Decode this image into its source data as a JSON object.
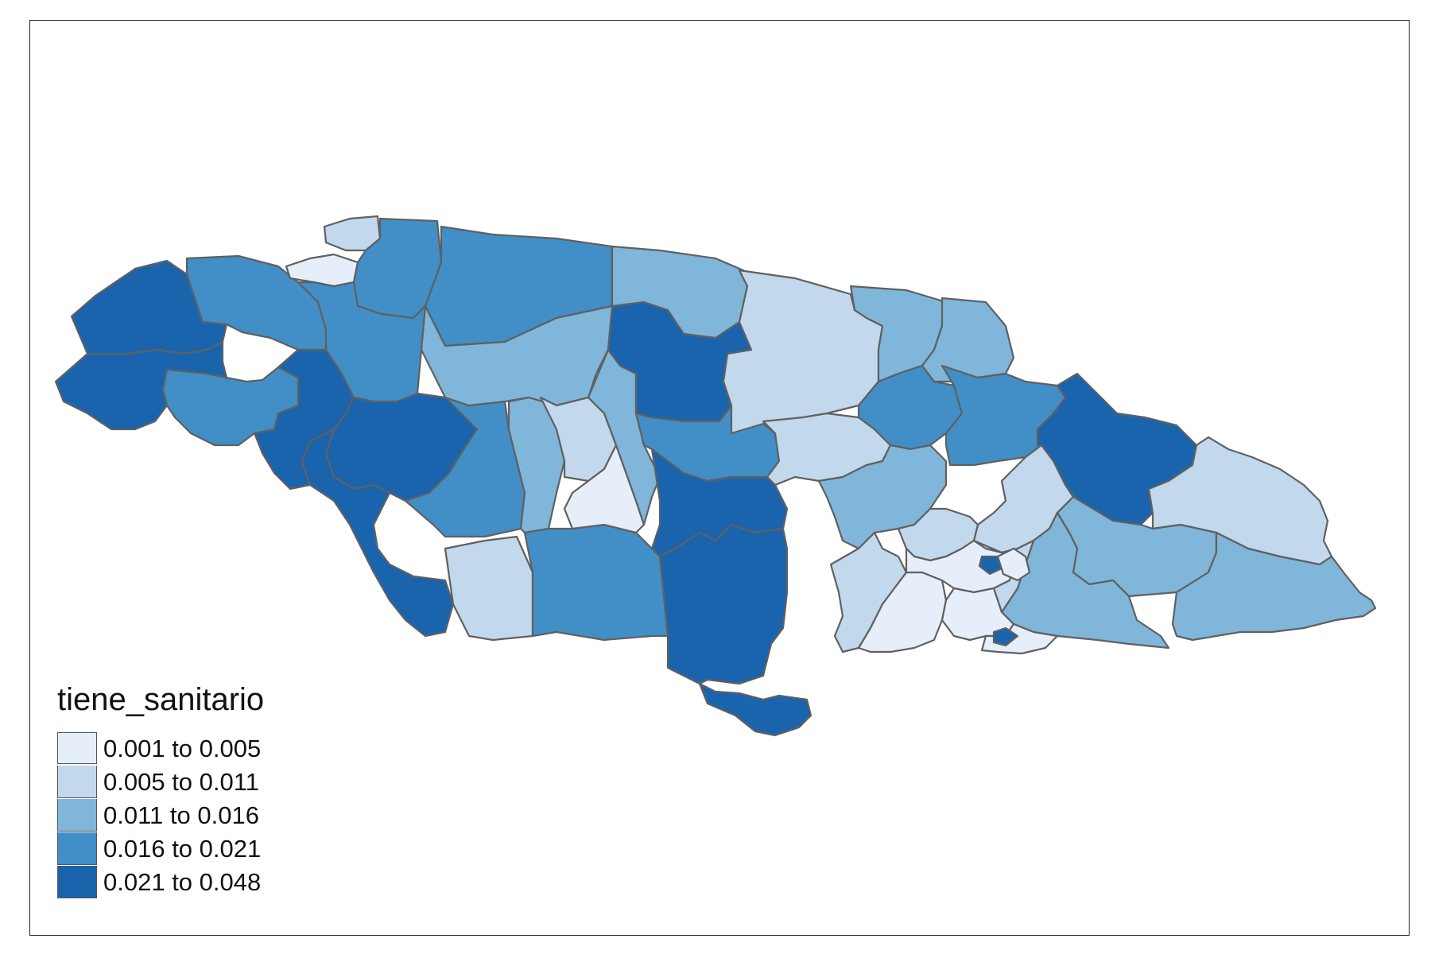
{
  "map": {
    "legend": {
      "title": "tiene_sanitario",
      "classes": [
        {
          "label": "0.001 to 0.005",
          "color": "#e6eff9"
        },
        {
          "label": "0.005 to 0.011",
          "color": "#c2d8ec"
        },
        {
          "label": "0.011 to 0.016",
          "color": "#7fb6d9"
        },
        {
          "label": "0.016 to 0.021",
          "color": "#418fc6"
        },
        {
          "label": "0.021 to 0.048",
          "color": "#1a64ae"
        }
      ]
    },
    "border_color": "#606060",
    "background": "#ffffff"
  }
}
